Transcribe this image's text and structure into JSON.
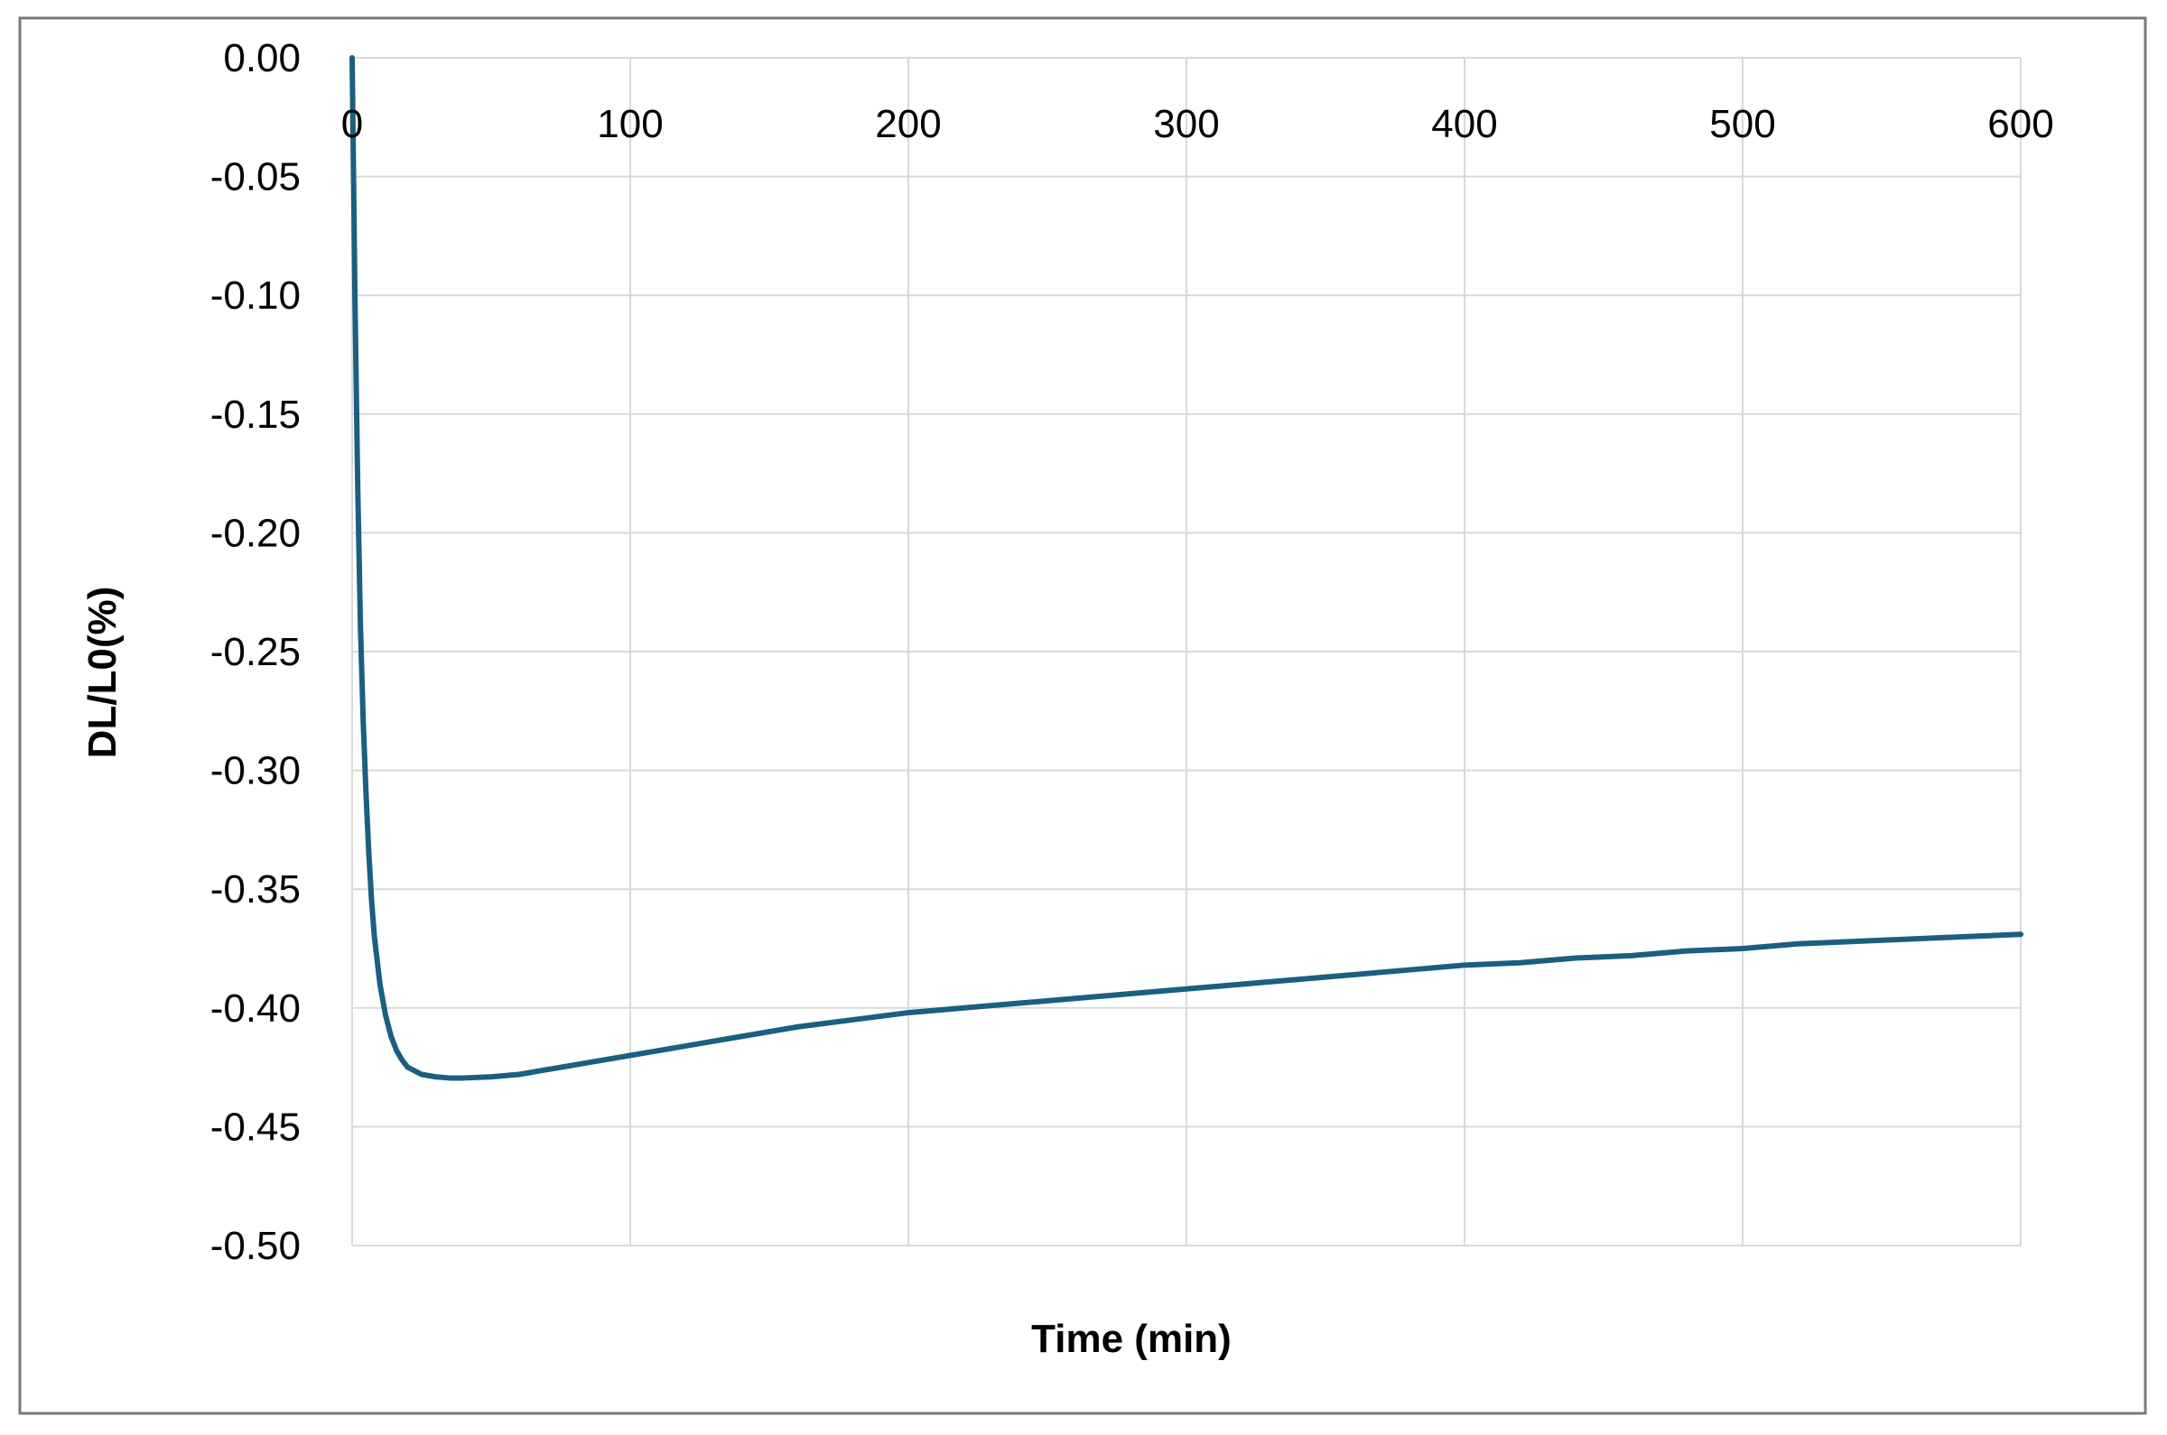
{
  "chart_data": {
    "type": "line",
    "title": "",
    "xlabel": "Time (min)",
    "ylabel": "DL/L0(%)",
    "xlim": [
      0,
      600
    ],
    "ylim": [
      -0.5,
      0.0
    ],
    "x_ticks": [
      "0",
      "100",
      "200",
      "300",
      "400",
      "500",
      "600"
    ],
    "y_ticks": [
      "0.00",
      "-0.05",
      "-0.10",
      "-0.15",
      "-0.20",
      "-0.25",
      "-0.30",
      "-0.35",
      "-0.40",
      "-0.45",
      "-0.50"
    ],
    "x_axis_position": "top",
    "grid": true,
    "legend": "none",
    "line_color": "#1b5f80",
    "series": [
      {
        "x": [
          0,
          1,
          2,
          3,
          4,
          5,
          6,
          7,
          8,
          10,
          12,
          14,
          16,
          18,
          20,
          25,
          30,
          35,
          40,
          50,
          60,
          70,
          80,
          90,
          100,
          120,
          140,
          160,
          180,
          200,
          220,
          240,
          260,
          280,
          300,
          320,
          340,
          360,
          380,
          400,
          420,
          440,
          460,
          480,
          500,
          520,
          540,
          560,
          580,
          600
        ],
        "y": [
          0.0,
          -0.1,
          -0.18,
          -0.24,
          -0.28,
          -0.31,
          -0.335,
          -0.355,
          -0.37,
          -0.39,
          -0.403,
          -0.412,
          -0.418,
          -0.422,
          -0.425,
          -0.428,
          -0.429,
          -0.4295,
          -0.4295,
          -0.429,
          -0.428,
          -0.426,
          -0.424,
          -0.422,
          -0.42,
          -0.416,
          -0.412,
          -0.408,
          -0.405,
          -0.402,
          -0.4,
          -0.398,
          -0.396,
          -0.394,
          -0.392,
          -0.39,
          -0.388,
          -0.386,
          -0.384,
          -0.382,
          -0.381,
          -0.379,
          -0.378,
          -0.376,
          -0.375,
          -0.373,
          -0.372,
          -0.371,
          -0.37,
          -0.369
        ]
      }
    ]
  }
}
